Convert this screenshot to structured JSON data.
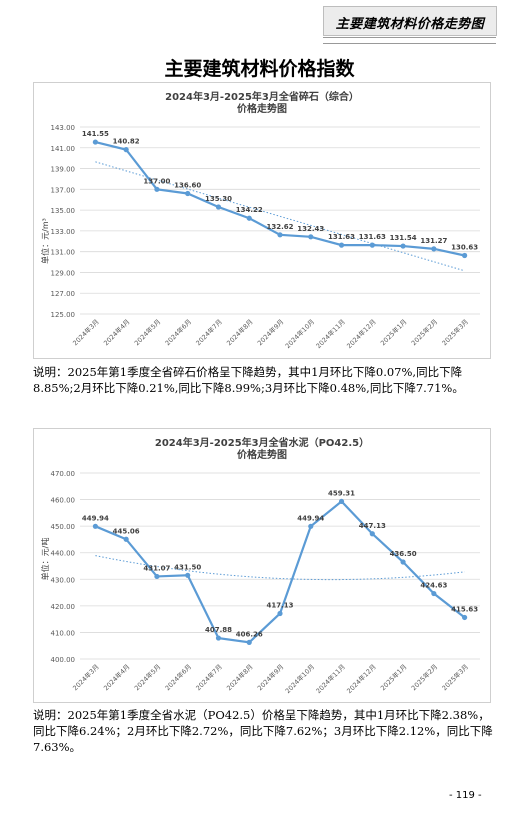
{
  "header": {
    "section_label": "主要建筑材料价格走势图"
  },
  "page": {
    "title": "主要建筑材料价格指数",
    "page_number": "- 119 -"
  },
  "charts": [
    {
      "title_line1": "2024年3月-2025年3月全省碎石（综合）",
      "title_line2": "价格走势图",
      "unit_label": "单位：元/m³",
      "note": "说明：2025年第1季度全省碎石价格呈下降趋势，其中1月环比下降0.07%,同比下降8.85%;2月环比下降0.21%,同比下降8.99%;3月环比下降0.48%,同比下降7.71%。"
    },
    {
      "title_line1": "2024年3月-2025年3月全省水泥（PO42.5）",
      "title_line2": "价格走势图",
      "unit_label": "单位：元/吨",
      "note": "说明：2025年第1季度全省水泥（PO42.5）价格呈下降趋势，其中1月环比下降2.38%，同比下降6.24%；2月环比下降2.72%，同比下降7.62%；3月环比下降2.12%，同比下降7.63%。"
    }
  ],
  "chart_data": [
    {
      "type": "line",
      "title": "2024年3月-2025年3月全省碎石（综合） 价格走势图",
      "ylabel": "单位：元/m³",
      "categories": [
        "2024年3月",
        "2024年4月",
        "2024年5月",
        "2024年6月",
        "2024年7月",
        "2024年8月",
        "2024年9月",
        "2024年10月",
        "2024年11月",
        "2024年12月",
        "2025年1月",
        "2025年2月",
        "2025年3月"
      ],
      "values": [
        141.55,
        140.82,
        137.0,
        136.6,
        135.3,
        134.22,
        132.62,
        132.43,
        131.63,
        131.63,
        131.54,
        131.27,
        130.63
      ],
      "value_labels": [
        "141.55",
        "140.82",
        "137.00",
        "136.60",
        "135.30",
        "134.22",
        "132.62",
        "132.43",
        "131.63",
        "131.63",
        "131.54",
        "131.27",
        "130.63"
      ],
      "ylim": [
        125,
        143
      ],
      "yticks": [
        "125.00",
        "127.00",
        "129.00",
        "131.00",
        "133.00",
        "135.00",
        "137.00",
        "139.00",
        "141.00",
        "143.00"
      ],
      "trendline": "dotted",
      "grid": true,
      "line_color": "#5b9bd5",
      "legend": "none"
    },
    {
      "type": "line",
      "title": "2024年3月-2025年3月全省水泥（PO42.5） 价格走势图",
      "ylabel": "单位：元/吨",
      "categories": [
        "2024年3月",
        "2024年4月",
        "2024年5月",
        "2024年6月",
        "2024年7月",
        "2024年8月",
        "2024年9月",
        "2024年10月",
        "2024年11月",
        "2024年12月",
        "2025年1月",
        "2025年2月",
        "2025年3月"
      ],
      "values": [
        449.94,
        445.06,
        431.07,
        431.5,
        407.88,
        406.26,
        417.13,
        449.94,
        459.31,
        447.13,
        436.5,
        424.63,
        415.63
      ],
      "value_labels": [
        "449.94",
        "445.06",
        "431.07",
        "431.50",
        "407.88",
        "406.26",
        "417.13",
        "449.94",
        "459.31",
        "447.13",
        "436.50",
        "424.63",
        "415.63"
      ],
      "ylim": [
        400,
        470
      ],
      "yticks": [
        "400.00",
        "410.00",
        "420.00",
        "430.00",
        "440.00",
        "450.00",
        "460.00",
        "470.00"
      ],
      "trendline": "dotted",
      "grid": true,
      "line_color": "#5b9bd5",
      "legend": "none"
    }
  ]
}
